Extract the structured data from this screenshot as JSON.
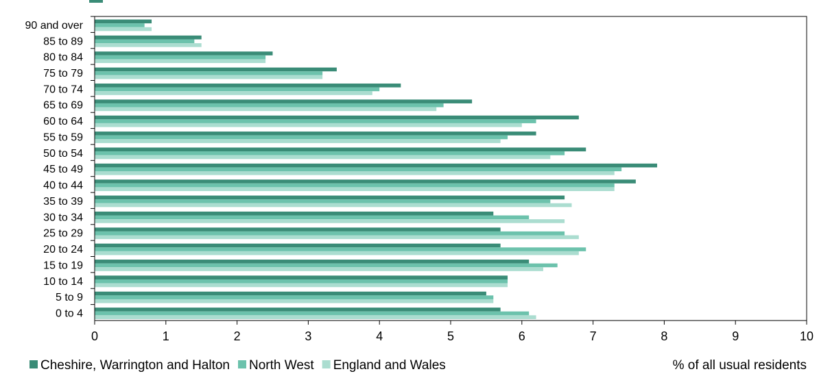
{
  "chart_data": {
    "type": "bar",
    "orientation": "horizontal",
    "categories": [
      "0 to 4",
      "5 to 9",
      "10 to 14",
      "15 to 19",
      "20 to 24",
      "25 to 29",
      "30 to 34",
      "35 to 39",
      "40 to 44",
      "45 to 49",
      "50 to 54",
      "55 to 59",
      "60 to 64",
      "65 to 69",
      "70 to 74",
      "75 to 79",
      "80 to 84",
      "85 to 89",
      "90 and over"
    ],
    "series": [
      {
        "name": "Cheshire, Warrington and Halton",
        "color": "#3a8c77",
        "values": [
          5.7,
          5.5,
          5.8,
          6.1,
          5.7,
          5.7,
          5.6,
          6.6,
          7.6,
          7.9,
          6.9,
          6.2,
          6.8,
          5.3,
          4.3,
          3.4,
          2.5,
          1.5,
          0.8
        ]
      },
      {
        "name": "North West",
        "color": "#6cc2ac",
        "values": [
          6.1,
          5.6,
          5.8,
          6.5,
          6.9,
          6.6,
          6.1,
          6.4,
          7.3,
          7.4,
          6.6,
          5.8,
          6.2,
          4.9,
          4.0,
          3.2,
          2.4,
          1.4,
          0.7
        ]
      },
      {
        "name": "England and Wales",
        "color": "#abddd0",
        "values": [
          6.2,
          5.6,
          5.8,
          6.3,
          6.8,
          6.8,
          6.6,
          6.7,
          7.3,
          7.3,
          6.4,
          5.7,
          6.0,
          4.8,
          3.9,
          3.2,
          2.4,
          1.5,
          0.8
        ]
      }
    ],
    "xlim": [
      0,
      10
    ],
    "x_ticks": [
      "0",
      "1",
      "2",
      "3",
      "4",
      "5",
      "6",
      "7",
      "8",
      "9",
      "10"
    ],
    "xlabel": "% of all usual residents",
    "grid": false,
    "legend_position": "bottom"
  }
}
